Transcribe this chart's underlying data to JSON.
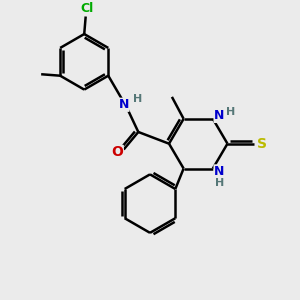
{
  "bg_color": "#ebebeb",
  "atom_colors": {
    "C": "#000000",
    "N": "#0000cc",
    "O": "#cc0000",
    "S": "#bbbb00",
    "Cl": "#00aa00",
    "H": "#557777"
  },
  "bond_color": "#000000",
  "bond_width": 1.8,
  "font_size": 9
}
